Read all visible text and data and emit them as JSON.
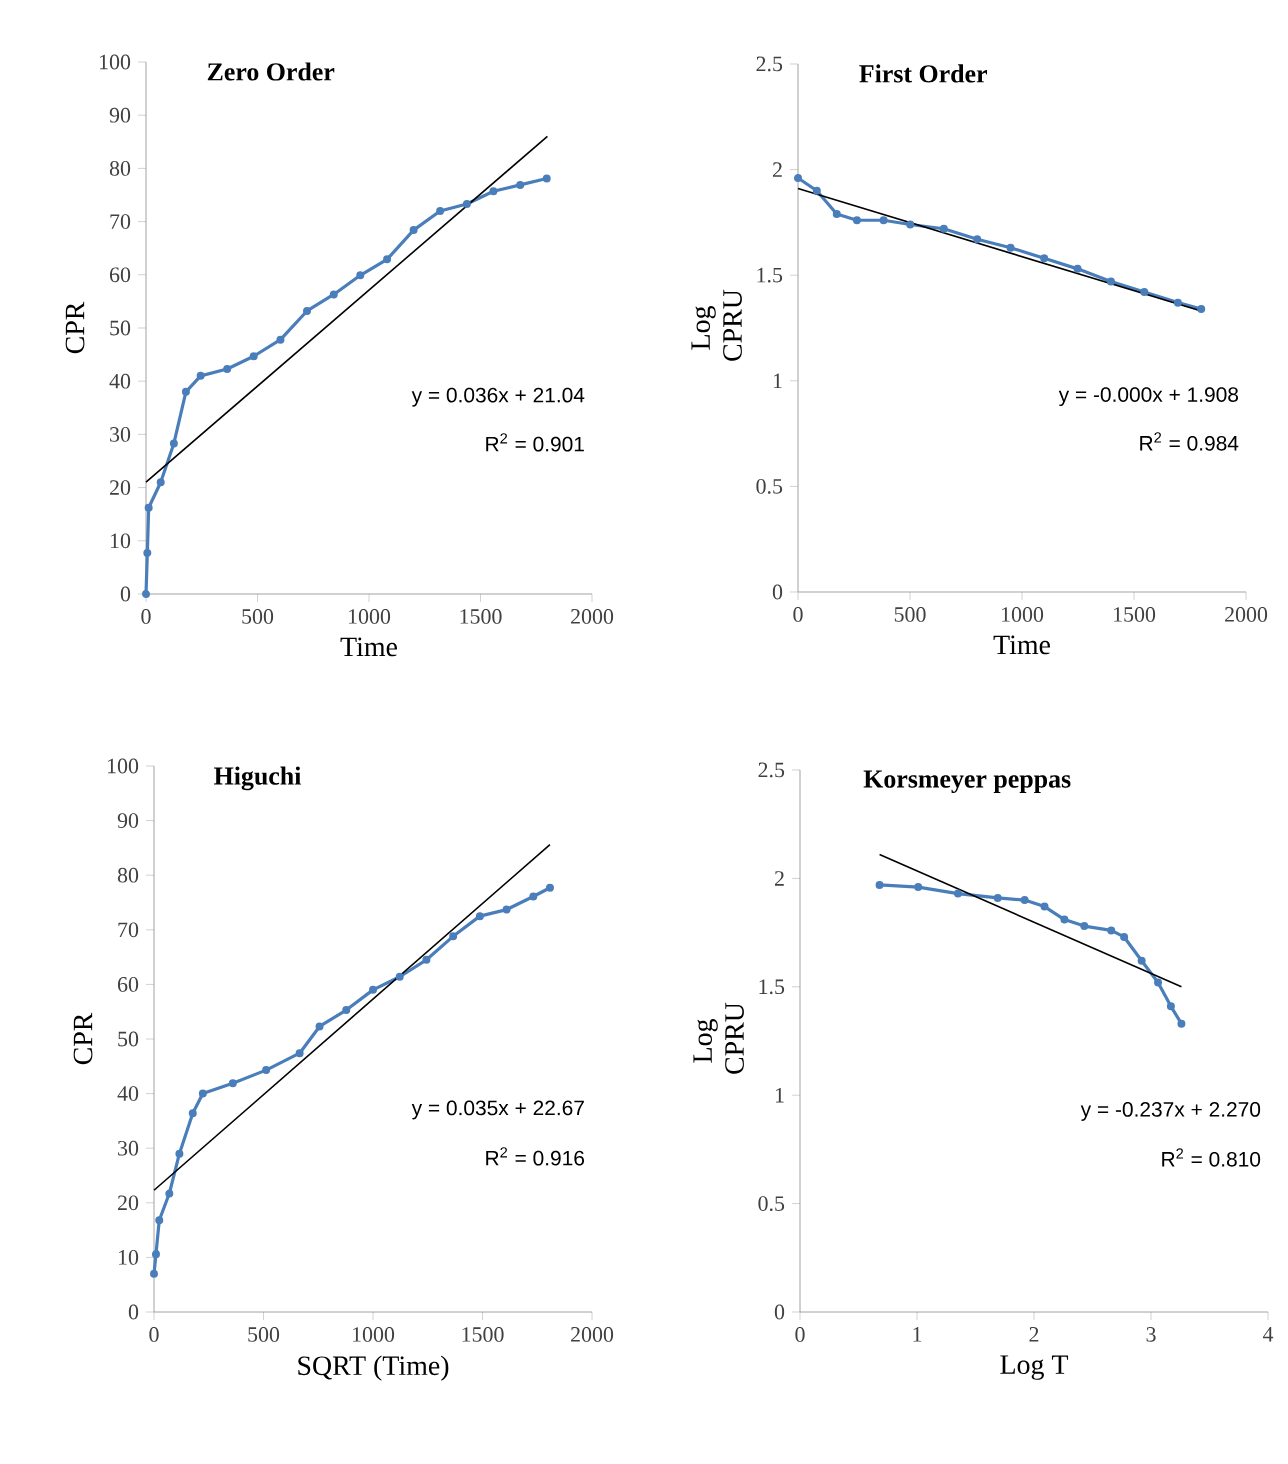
{
  "chart_data": [
    {
      "type": "line",
      "title": "Zero Order",
      "xlabel": "Time",
      "ylabel": "CPR",
      "xlim": [
        0,
        2000
      ],
      "xticks": [
        0,
        500,
        1000,
        1500,
        2000
      ],
      "ylim": [
        0,
        100
      ],
      "yticks": [
        0,
        10,
        20,
        30,
        40,
        50,
        60,
        70,
        80,
        90,
        100
      ],
      "series": [
        {
          "color": "#4a7ebb",
          "marker": "circle",
          "x": [
            0,
            6,
            12,
            66,
            125,
            179,
            245,
            364,
            483,
            603,
            722,
            842,
            961,
            1081,
            1200,
            1319,
            1439,
            1558,
            1678,
            1797
          ],
          "values": [
            0,
            7.7,
            16.2,
            21,
            28.3,
            38,
            41,
            42.3,
            44.7,
            47.8,
            53.2,
            56.3,
            59.9,
            62.9,
            68.4,
            72,
            73.3,
            75.7,
            76.9,
            78.1
          ]
        },
        {
          "color": "#000000",
          "marker": "none",
          "x": [
            0,
            1800
          ],
          "values": [
            21.04,
            86
          ]
        }
      ],
      "annotations": [
        "y = 0.036x + 21.04",
        "R$^{2}$ = 0.901"
      ]
    },
    {
      "type": "line",
      "title": "First Order",
      "xlabel": "Time",
      "ylabel": "Log CPRU",
      "xlim": [
        0,
        2000
      ],
      "xticks": [
        0,
        500,
        1000,
        1500,
        2000
      ],
      "ylim": [
        0,
        2.5
      ],
      "yticks": [
        0,
        0.5,
        1,
        1.5,
        2,
        2.5
      ],
      "series": [
        {
          "color": "#4a7ebb",
          "marker": "circle",
          "x": [
            0,
            84,
            173,
            263,
            382,
            501,
            651,
            800,
            949,
            1099,
            1248,
            1397,
            1546,
            1696,
            1800
          ],
          "values": [
            1.96,
            1.9,
            1.79,
            1.76,
            1.76,
            1.74,
            1.72,
            1.67,
            1.63,
            1.58,
            1.53,
            1.47,
            1.42,
            1.37,
            1.34
          ]
        },
        {
          "color": "#000000",
          "marker": "none",
          "x": [
            0,
            1800
          ],
          "values": [
            1.91,
            1.33
          ]
        }
      ],
      "annotations": [
        "y = -0.000x + 1.908",
        "R$^{2}$ = 0.984"
      ]
    },
    {
      "type": "line",
      "title": "Higuchi",
      "xlabel": "SQRT (Time)",
      "ylabel": "CPR",
      "xlim": [
        0,
        2000
      ],
      "xticks": [
        0,
        500,
        1000,
        1500,
        2000
      ],
      "ylim": [
        0,
        100
      ],
      "yticks": [
        0,
        10,
        20,
        30,
        40,
        50,
        60,
        70,
        80,
        90,
        100
      ],
      "series": [
        {
          "color": "#4a7ebb",
          "marker": "circle",
          "x": [
            0,
            9,
            24,
            70,
            116,
            177,
            223,
            360,
            512,
            665,
            756,
            878,
            1000,
            1122,
            1244,
            1366,
            1488,
            1610,
            1732,
            1808
          ],
          "values": [
            7,
            10.6,
            16.8,
            21.7,
            29,
            36.4,
            40,
            41.9,
            44.3,
            47.4,
            52.3,
            55.3,
            59,
            61.4,
            64.5,
            68.8,
            72.5,
            73.7,
            76.1,
            77.7
          ]
        },
        {
          "color": "#000000",
          "marker": "none",
          "x": [
            0,
            1808
          ],
          "values": [
            22.3,
            85.6
          ]
        }
      ],
      "annotations": [
        "y = 0.035x + 22.67",
        "R$^{2}$ = 0.916"
      ]
    },
    {
      "type": "line",
      "title": "Korsmeyer peppas",
      "xlabel": "Log T",
      "ylabel": "Log CPRU",
      "xlim": [
        0,
        4
      ],
      "xticks": [
        0,
        1,
        2,
        3,
        4
      ],
      "ylim": [
        0,
        2.5
      ],
      "yticks": [
        0,
        0.5,
        1,
        1.5,
        2,
        2.5
      ],
      "series": [
        {
          "color": "#4a7ebb",
          "marker": "circle",
          "x": [
            0.68,
            1.01,
            1.35,
            1.69,
            1.92,
            2.09,
            2.26,
            2.43,
            2.66,
            2.77,
            2.92,
            3.06,
            3.17,
            3.26
          ],
          "values": [
            1.97,
            1.96,
            1.93,
            1.91,
            1.9,
            1.87,
            1.81,
            1.78,
            1.76,
            1.73,
            1.62,
            1.52,
            1.41,
            1.33
          ]
        },
        {
          "color": "#000000",
          "marker": "none",
          "x": [
            0.68,
            3.26
          ],
          "values": [
            2.11,
            1.5
          ]
        }
      ],
      "annotations": [
        "y = -0.237x + 2.270",
        "R$^{2}$ = 0.810"
      ]
    }
  ]
}
